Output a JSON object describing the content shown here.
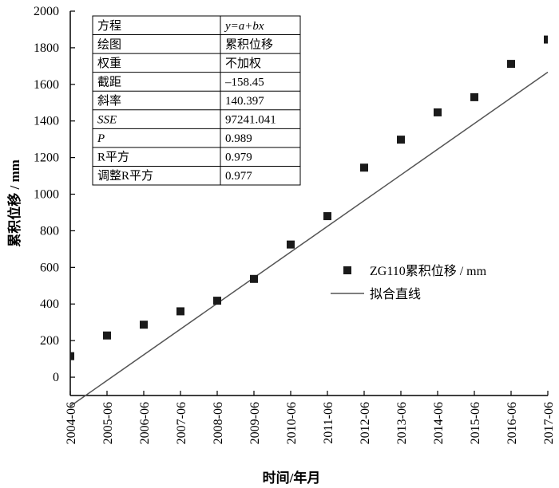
{
  "chart_data": {
    "type": "scatter",
    "x": [
      "2004-06",
      "2005-06",
      "2006-06",
      "2007-06",
      "2008-06",
      "2009-06",
      "2010-06",
      "2011-06",
      "2012-06",
      "2013-06",
      "2014-06",
      "2015-06",
      "2016-06",
      "2017-06"
    ],
    "series": [
      {
        "name": "ZG110累积位移 / mm",
        "marker": "square",
        "values": [
          115,
          228,
          287,
          360,
          418,
          537,
          725,
          880,
          1145,
          1298,
          1447,
          1530,
          1712,
          1845
        ]
      }
    ],
    "fit_line": {
      "name": "拟合直线",
      "intercept": -158.45,
      "slope": 140.397
    },
    "xlabel": "时间/年月",
    "ylabel": "累积位移 / mm",
    "ylim": [
      -100,
      2000
    ],
    "yticks": [
      0,
      200,
      400,
      600,
      800,
      1000,
      1200,
      1400,
      1600,
      1800,
      2000
    ],
    "legend_position": "right-middle",
    "colors": {
      "marker": "#1a1a1a",
      "line": "#555555"
    },
    "stats_table": [
      {
        "label": "方程",
        "value": "y=a+bx"
      },
      {
        "label": "绘图",
        "value": "累积位移"
      },
      {
        "label": "权重",
        "value": "不加权"
      },
      {
        "label": "截距",
        "value": "–158.45"
      },
      {
        "label": "斜率",
        "value": "140.397"
      },
      {
        "label": "SSE",
        "value": "97241.041"
      },
      {
        "label": "P",
        "value": "0.989"
      },
      {
        "label": "R平方",
        "value": "0.979"
      },
      {
        "label": "调整R平方",
        "value": "0.977"
      }
    ]
  }
}
